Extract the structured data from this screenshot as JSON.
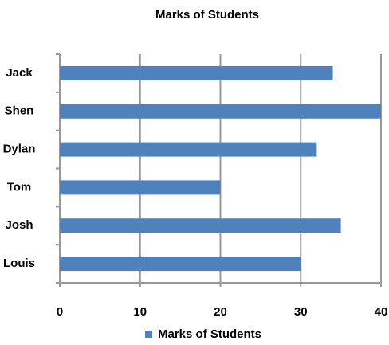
{
  "chart_data": {
    "type": "barh",
    "title": "Marks of Students",
    "categories": [
      "Jack",
      "Shen",
      "Dylan",
      "Tom",
      "Josh",
      "Louis"
    ],
    "series": [
      {
        "name": "Marks of Students",
        "color": "#4f81bd",
        "values": [
          34,
          40,
          32,
          20,
          35,
          30
        ]
      }
    ],
    "xlim": [
      0,
      40
    ],
    "xticks": [
      0,
      10,
      20,
      30,
      40
    ],
    "grid": true,
    "legend": "bottom"
  }
}
